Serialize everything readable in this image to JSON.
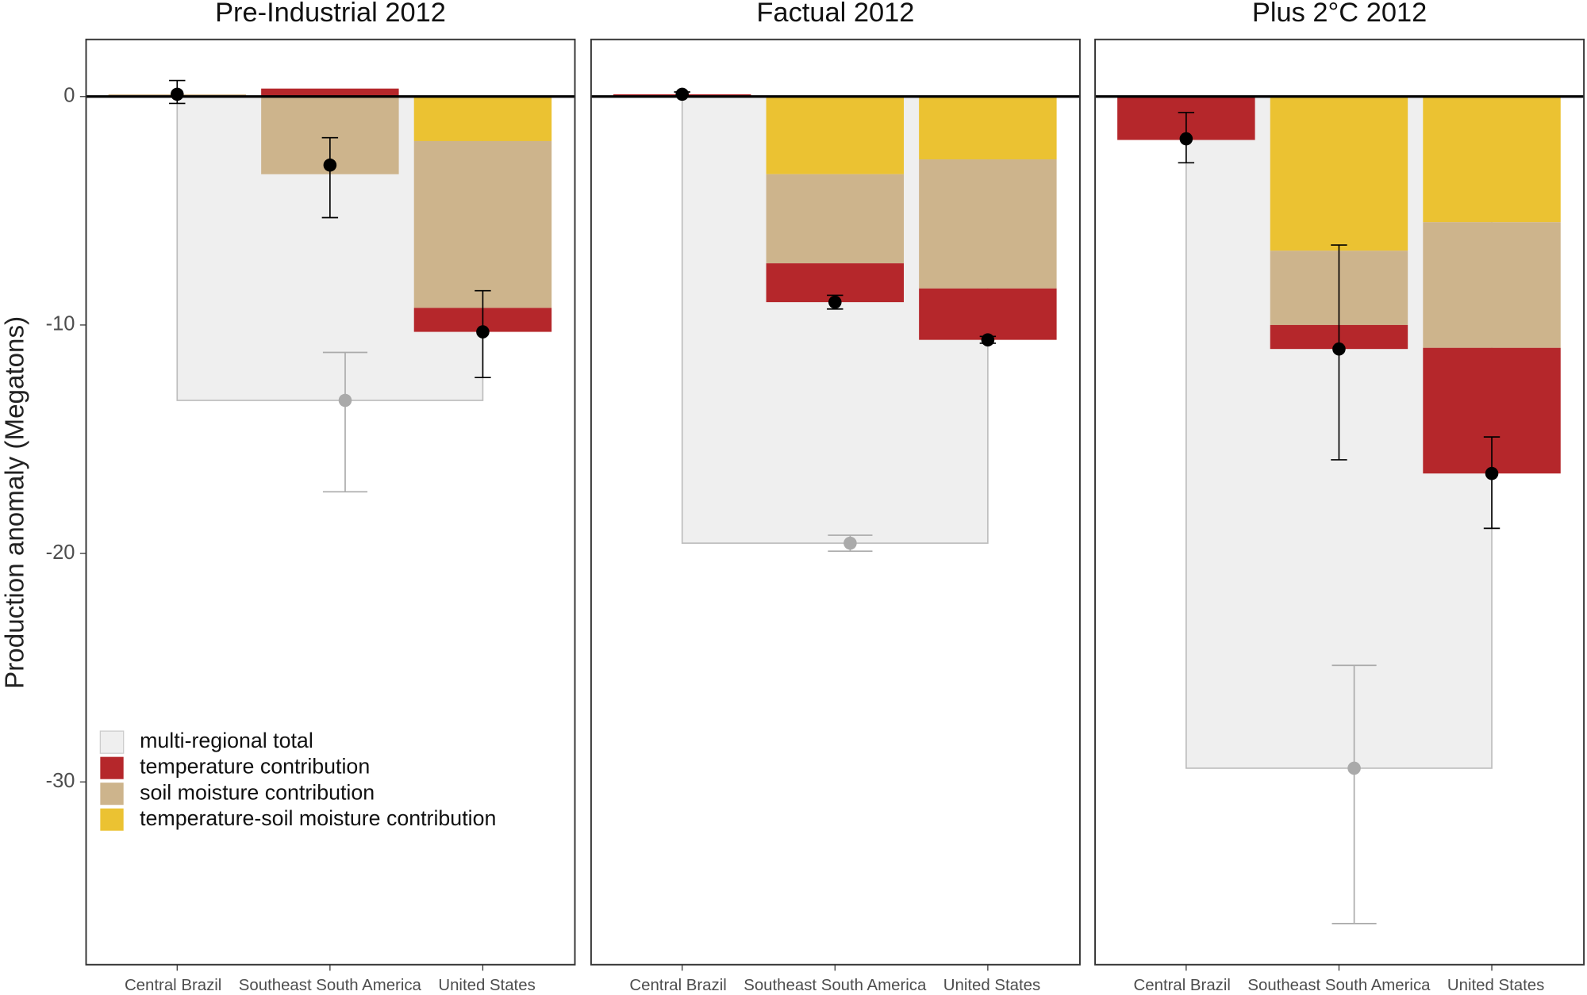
{
  "chart_data": {
    "type": "stacked-bar",
    "ylabel": "Production anomaly (Megatons)",
    "ylim": [
      -38,
      2.5
    ],
    "yticks": [
      0,
      -10,
      -20,
      -30
    ],
    "series": [
      {
        "name": "multi-regional total",
        "color": "#efefef"
      },
      {
        "name": "temperature contribution",
        "color": "#b5272b"
      },
      {
        "name": "soil moisture contribution",
        "color": "#cdb48c"
      },
      {
        "name": "temperature-soil moisture contribution",
        "color": "#ebc232"
      }
    ],
    "facets": [
      {
        "title": "Pre-Industrial 2012",
        "categories": [
          "Central Brazil",
          "Southeast South America",
          "United States"
        ],
        "stacks": [
          {
            "values": [
              0,
              0.35,
              -1.05
            ]
          },
          {
            "values": [
              0.1,
              -3.4,
              -7.3
            ]
          },
          {
            "values": [
              0,
              0,
              -1.95
            ]
          }
        ],
        "estimate": [
          0.1,
          -3.0,
          -10.3
        ],
        "error_low": [
          -0.3,
          -5.3,
          -12.3
        ],
        "error_high": [
          0.7,
          -1.8,
          -8.5
        ],
        "total": {
          "value": -13.3,
          "low": -17.3,
          "high": -11.2
        }
      },
      {
        "title": "Factual 2012",
        "categories": [
          "Central Brazil",
          "Southeast South America",
          "United States"
        ],
        "stacks": [
          {
            "values": [
              0.1,
              -1.7,
              -2.25
            ]
          },
          {
            "values": [
              0,
              -3.9,
              -5.65
            ]
          },
          {
            "values": [
              0,
              -3.4,
              -2.75
            ]
          }
        ],
        "estimate": [
          0.1,
          -9.0,
          -10.65
        ],
        "error_low": [
          0,
          -9.3,
          -10.8
        ],
        "error_high": [
          0.2,
          -8.7,
          -10.5
        ],
        "total": {
          "value": -19.55,
          "low": -19.9,
          "high": -19.2
        }
      },
      {
        "title": "Plus 2°C 2012",
        "categories": [
          "Central Brazil",
          "Southeast South America",
          "United States"
        ],
        "stacks": [
          {
            "values": [
              -1.9,
              -1.05,
              -5.5
            ]
          },
          {
            "values": [
              0,
              -3.25,
              -5.5
            ]
          },
          {
            "values": [
              0,
              -6.75,
              -5.5
            ]
          }
        ],
        "estimate": [
          -1.85,
          -11.05,
          -16.5
        ],
        "error_low": [
          -2.9,
          -15.9,
          -18.9
        ],
        "error_high": [
          -0.7,
          -6.5,
          -14.9
        ],
        "total": {
          "value": -29.4,
          "low": -36.2,
          "high": -24.9
        }
      }
    ]
  }
}
